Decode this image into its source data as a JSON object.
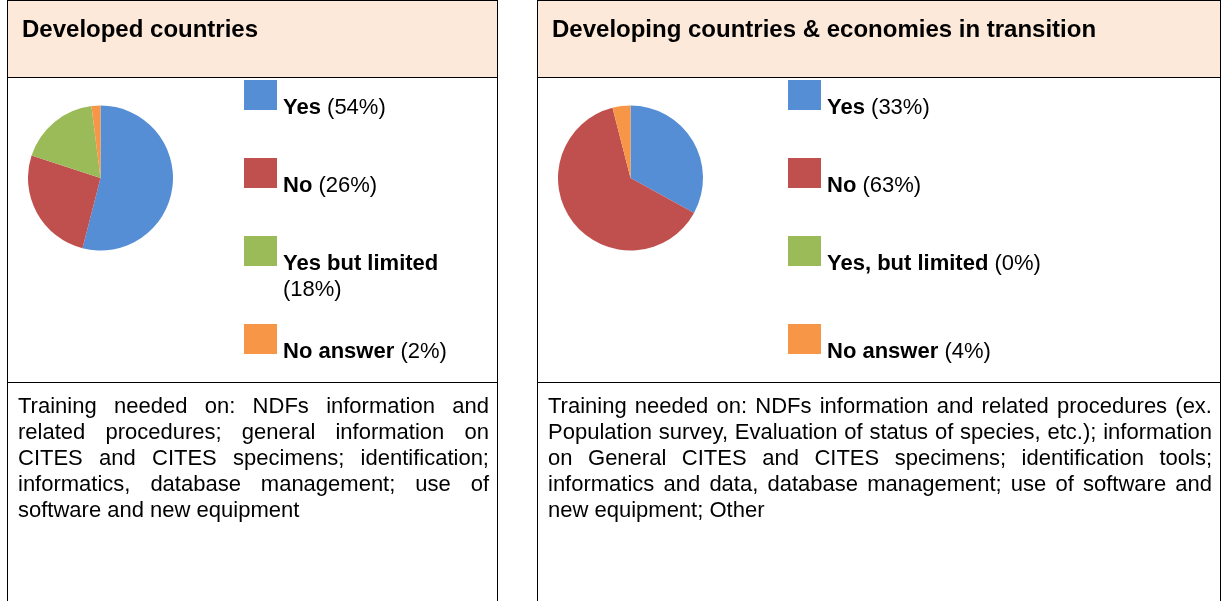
{
  "chart_data": [
    {
      "type": "pie",
      "title": "Developed countries",
      "categories": [
        "Yes",
        "No",
        "Yes but limited",
        "No answer"
      ],
      "values": [
        54,
        26,
        18,
        2
      ],
      "colors": [
        "#558ed5",
        "#c0504d",
        "#9bbb59",
        "#f79646"
      ],
      "value_labels": [
        "(54%)",
        "(26%)",
        "(18%)",
        "(2%)"
      ],
      "legend": "right",
      "annotations": [
        "Training needed on: NDFs information and related procedures; general information on CITES and CITES specimens; identification; informatics, database management; use of software and new equipment"
      ]
    },
    {
      "type": "pie",
      "title": "Developing countries & economies in transition",
      "categories": [
        "Yes",
        "No",
        "Yes, but limited",
        "No answer"
      ],
      "values": [
        33,
        63,
        0,
        4
      ],
      "colors": [
        "#558ed5",
        "#c0504d",
        "#9bbb59",
        "#f79646"
      ],
      "value_labels": [
        "(33%)",
        "(63%)",
        "(0%)",
        "(4%)"
      ],
      "legend": "right",
      "annotations": [
        "Training needed on: NDFs information and related procedures (ex. Population survey, Evaluation of status of species, etc.); information on General CITES and CITES specimens; identification tools; informatics and data, database management; use of software and new equipment; Other"
      ]
    }
  ]
}
